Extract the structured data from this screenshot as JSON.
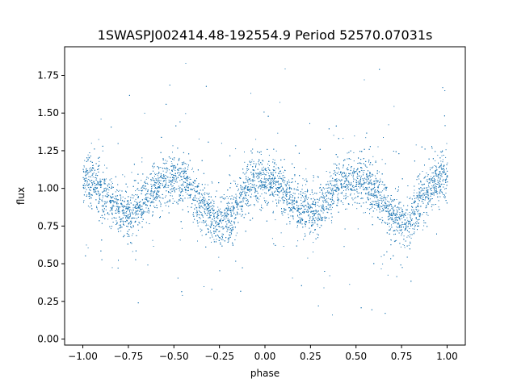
{
  "chart_data": {
    "type": "scatter",
    "title": "1SWASPJ002414.48-192554.9 Period 52570.07031s",
    "xlabel": "phase",
    "ylabel": "flux",
    "xlim": [
      -1.1,
      1.1
    ],
    "ylim": [
      -0.04,
      1.94
    ],
    "xticks": [
      -1.0,
      -0.75,
      -0.5,
      -0.25,
      0.0,
      0.25,
      0.5,
      0.75,
      1.0
    ],
    "xtick_labels": [
      "−1.00",
      "−0.75",
      "−0.50",
      "−0.25",
      "0.00",
      "0.25",
      "0.50",
      "0.75",
      "1.00"
    ],
    "yticks": [
      0.0,
      0.25,
      0.5,
      0.75,
      1.0,
      1.25,
      1.5,
      1.75
    ],
    "ytick_labels": [
      "0.00",
      "0.25",
      "0.50",
      "0.75",
      "1.00",
      "1.25",
      "1.50",
      "1.75"
    ],
    "grid": false,
    "marker_color": "#1f77b4",
    "series": [
      {
        "x": [
          -1.0,
          -0.95,
          -0.9,
          -0.85,
          -0.8,
          -0.75,
          -0.7,
          -0.65,
          -0.6,
          -0.55,
          -0.5,
          -0.45,
          -0.4,
          -0.35,
          -0.3,
          -0.25,
          -0.2,
          -0.15,
          -0.1,
          -0.05,
          0.0,
          0.05,
          0.1,
          0.15,
          0.2,
          0.25,
          0.3,
          0.35,
          0.4,
          0.45,
          0.5,
          0.55,
          0.6,
          0.65,
          0.7,
          0.75,
          0.8,
          0.85,
          0.9,
          0.95,
          1.0
        ],
        "y": [
          1.07,
          1.04,
          0.98,
          0.91,
          0.86,
          0.84,
          0.87,
          0.95,
          1.02,
          1.06,
          1.07,
          1.05,
          0.99,
          0.9,
          0.81,
          0.77,
          0.81,
          0.9,
          1.0,
          1.06,
          1.07,
          1.04,
          0.98,
          0.91,
          0.86,
          0.84,
          0.87,
          0.95,
          1.02,
          1.06,
          1.07,
          1.05,
          0.99,
          0.9,
          0.81,
          0.77,
          0.81,
          0.9,
          1.0,
          1.06,
          1.07
        ]
      }
    ]
  }
}
